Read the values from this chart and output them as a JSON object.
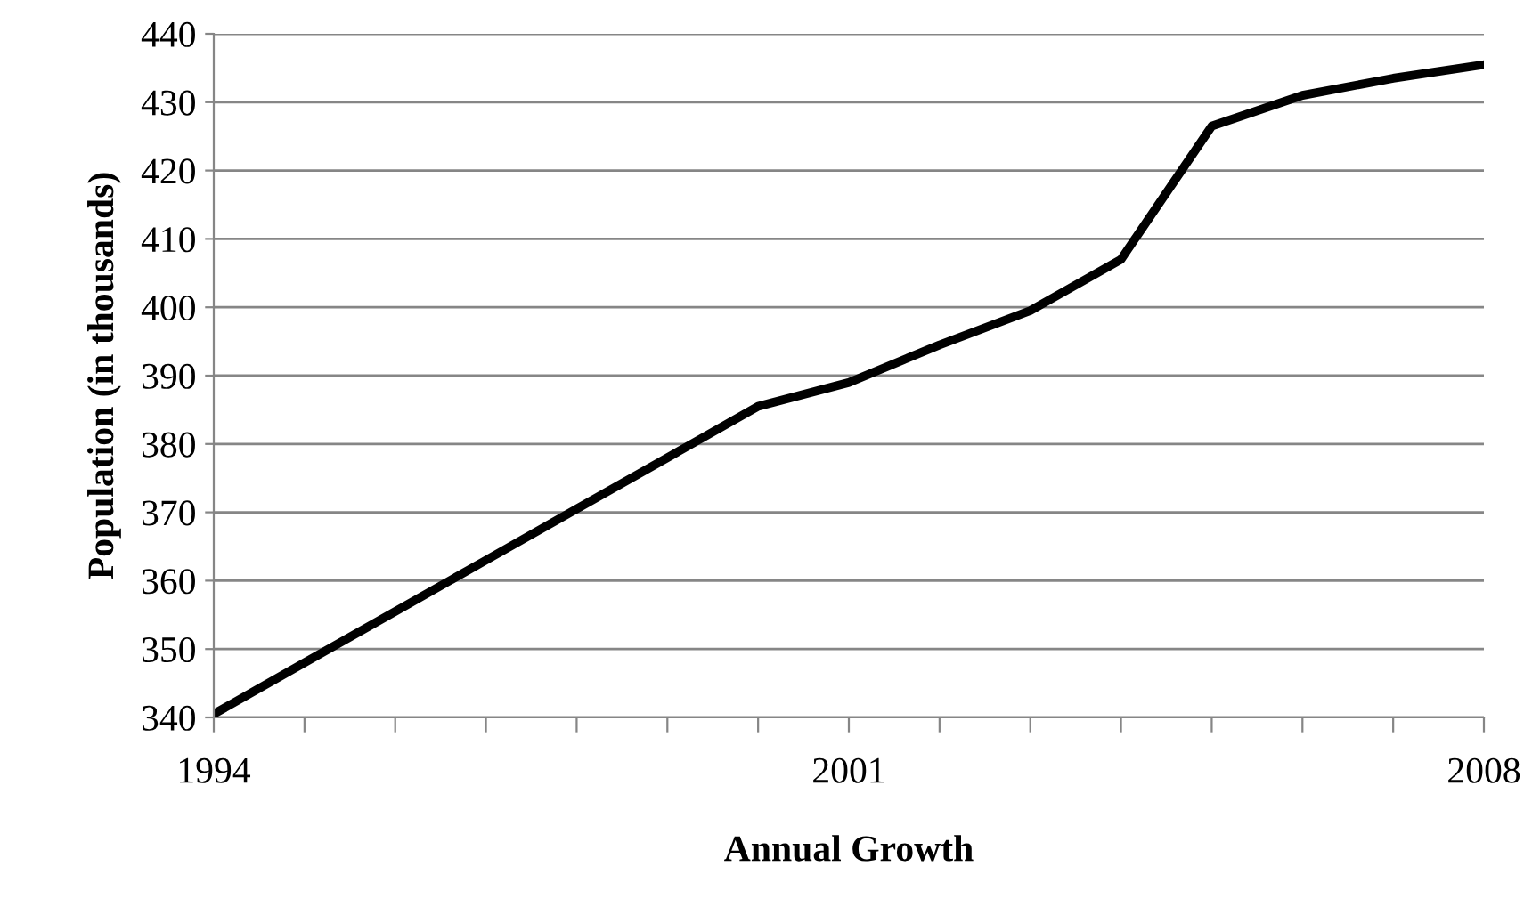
{
  "chart_data": {
    "type": "line",
    "xlabel": "Annual Growth",
    "ylabel": "Population (in thousands)",
    "categories": [
      "1994",
      null,
      null,
      null,
      null,
      null,
      null,
      "2001",
      null,
      null,
      null,
      null,
      null,
      null,
      "2008"
    ],
    "series": [
      {
        "color": "#000000",
        "values": [
          340.5,
          348,
          355.5,
          363,
          370.5,
          378,
          385.5,
          389,
          394.5,
          399.5,
          407,
          426.5,
          431,
          433.5,
          435.5
        ]
      }
    ],
    "ylim": [
      340,
      440
    ],
    "yticks": [
      340,
      350,
      360,
      370,
      380,
      390,
      400,
      410,
      420,
      430,
      440
    ],
    "grid": "y",
    "marker": "none",
    "line_style": "solid"
  }
}
